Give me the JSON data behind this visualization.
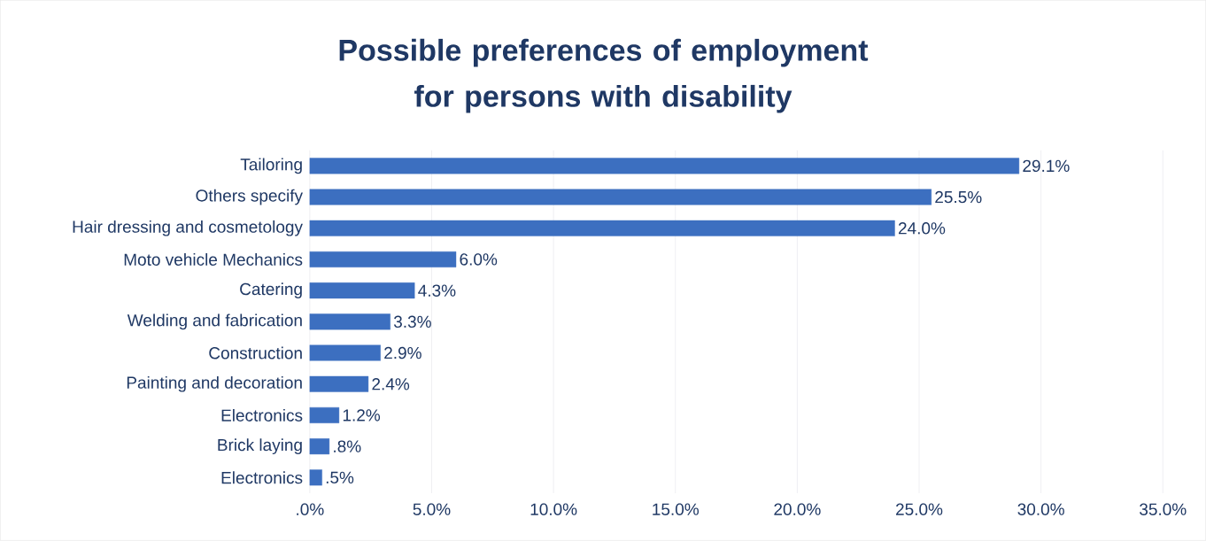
{
  "chart_data": {
    "type": "bar",
    "orientation": "horizontal",
    "title": "Possible preferences of employment for persons with disability",
    "categories": [
      "Tailoring",
      "Others specify",
      "Hair dressing and cosmetology",
      "Moto vehicle Mechanics",
      "Catering",
      "Welding and fabrication",
      "Construction",
      "Painting and decoration",
      "Electronics",
      "Brick laying",
      "Electronics"
    ],
    "values": [
      29.1,
      25.5,
      24.0,
      6.0,
      4.3,
      3.3,
      2.9,
      2.4,
      1.2,
      0.8,
      0.5
    ],
    "value_labels": [
      "29.1%",
      "25.5%",
      "24.0%",
      "6.0%",
      "4.3%",
      "3.3%",
      "2.9%",
      "2.4%",
      "1.2%",
      ".8%",
      ".5%"
    ],
    "color": "#3c6fc0",
    "xlim": [
      0,
      35
    ],
    "xticks": [
      {
        "value": 0,
        "label": ".0%"
      },
      {
        "value": 5,
        "label": "5.0%"
      },
      {
        "value": 10,
        "label": "10.0%"
      },
      {
        "value": 15,
        "label": "15.0%"
      },
      {
        "value": 20,
        "label": "20.0%"
      },
      {
        "value": 25,
        "label": "25.0%"
      },
      {
        "value": 30,
        "label": "30.0%"
      },
      {
        "value": 35,
        "label": "35.0%"
      }
    ],
    "grid": "x"
  }
}
